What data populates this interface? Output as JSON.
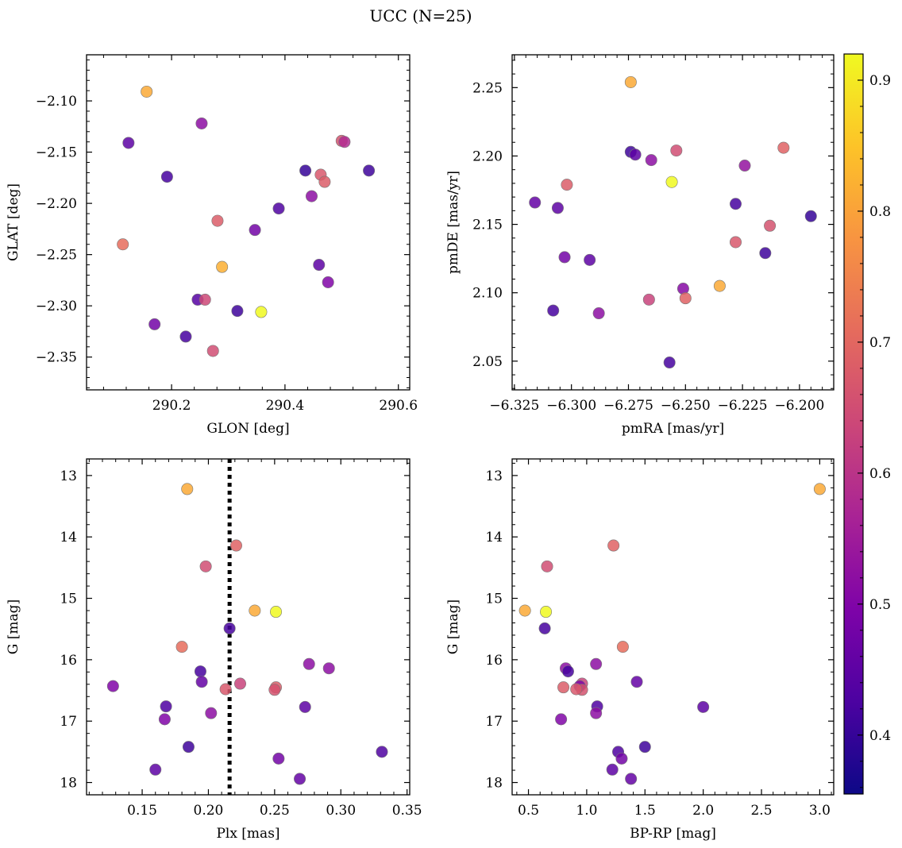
{
  "figure": {
    "title": "UCC (N=25)"
  },
  "colorbar": {
    "range": [
      0.355,
      0.92
    ],
    "ticks": [
      0.4,
      0.5,
      0.6,
      0.7,
      0.8,
      0.9
    ],
    "tick_labels": [
      "0.4",
      "0.5",
      "0.6",
      "0.7",
      "0.8",
      "0.9"
    ],
    "colormap": "plasma"
  },
  "chart_data": [
    {
      "type": "scatter",
      "xlabel": "GLON [deg]",
      "ylabel": "GLAT [deg]",
      "xlim": [
        290.05,
        290.62
      ],
      "ylim": [
        -2.382,
        -2.055
      ],
      "x_inverted": false,
      "y_inverted": false,
      "xticks": [
        290.2,
        290.4,
        290.6
      ],
      "xtick_labels": [
        "290.2",
        "290.4",
        "290.6"
      ],
      "yticks": [
        -2.35,
        -2.3,
        -2.25,
        -2.2,
        -2.15,
        -2.1
      ],
      "ytick_labels": [
        "−2.35",
        "−2.30",
        "−2.25",
        "−2.20",
        "−2.15",
        "−2.10"
      ],
      "points": [
        {
          "x": 290.156,
          "y": -2.091,
          "c": 0.81
        },
        {
          "x": 290.253,
          "y": -2.122,
          "c": 0.52
        },
        {
          "x": 290.124,
          "y": -2.141,
          "c": 0.45
        },
        {
          "x": 290.192,
          "y": -2.174,
          "c": 0.42
        },
        {
          "x": 290.5,
          "y": -2.139,
          "c": 0.66
        },
        {
          "x": 290.505,
          "y": -2.14,
          "c": 0.58
        },
        {
          "x": 290.436,
          "y": -2.168,
          "c": 0.4
        },
        {
          "x": 290.548,
          "y": -2.168,
          "c": 0.41
        },
        {
          "x": 290.463,
          "y": -2.172,
          "c": 0.67
        },
        {
          "x": 290.47,
          "y": -2.179,
          "c": 0.68
        },
        {
          "x": 290.447,
          "y": -2.193,
          "c": 0.52
        },
        {
          "x": 290.389,
          "y": -2.205,
          "c": 0.43
        },
        {
          "x": 290.281,
          "y": -2.217,
          "c": 0.68
        },
        {
          "x": 290.347,
          "y": -2.226,
          "c": 0.48
        },
        {
          "x": 290.114,
          "y": -2.24,
          "c": 0.71
        },
        {
          "x": 290.46,
          "y": -2.26,
          "c": 0.45
        },
        {
          "x": 290.289,
          "y": -2.262,
          "c": 0.82
        },
        {
          "x": 290.476,
          "y": -2.277,
          "c": 0.5
        },
        {
          "x": 290.246,
          "y": -2.294,
          "c": 0.44
        },
        {
          "x": 290.259,
          "y": -2.294,
          "c": 0.64
        },
        {
          "x": 290.316,
          "y": -2.305,
          "c": 0.41
        },
        {
          "x": 290.358,
          "y": -2.306,
          "c": 0.92
        },
        {
          "x": 290.17,
          "y": -2.318,
          "c": 0.48
        },
        {
          "x": 290.225,
          "y": -2.33,
          "c": 0.42
        },
        {
          "x": 290.273,
          "y": -2.344,
          "c": 0.65
        }
      ]
    },
    {
      "type": "scatter",
      "xlabel": "pmRA [mas/yr]",
      "ylabel": "pmDE [mas/yr]",
      "xlim": [
        -6.326,
        -6.185
      ],
      "ylim": [
        2.029,
        2.274
      ],
      "x_inverted": false,
      "y_inverted": false,
      "xticks": [
        -6.325,
        -6.3,
        -6.275,
        -6.25,
        -6.225,
        -6.2
      ],
      "xtick_labels": [
        "−6.325",
        "−6.300",
        "−6.275",
        "−6.250",
        "−6.225",
        "−6.200"
      ],
      "yticks": [
        2.05,
        2.1,
        2.15,
        2.2,
        2.25
      ],
      "ytick_labels": [
        "2.05",
        "2.10",
        "2.15",
        "2.20",
        "2.25"
      ],
      "points": [
        {
          "x": -6.274,
          "y": 2.254,
          "c": 0.81
        },
        {
          "x": -6.274,
          "y": 2.203,
          "c": 0.41
        },
        {
          "x": -6.272,
          "y": 2.201,
          "c": 0.45
        },
        {
          "x": -6.254,
          "y": 2.204,
          "c": 0.65
        },
        {
          "x": -6.265,
          "y": 2.197,
          "c": 0.52
        },
        {
          "x": -6.207,
          "y": 2.206,
          "c": 0.69
        },
        {
          "x": -6.224,
          "y": 2.193,
          "c": 0.53
        },
        {
          "x": -6.256,
          "y": 2.181,
          "c": 0.92
        },
        {
          "x": -6.302,
          "y": 2.179,
          "c": 0.68
        },
        {
          "x": -6.316,
          "y": 2.166,
          "c": 0.46
        },
        {
          "x": -6.306,
          "y": 2.162,
          "c": 0.45
        },
        {
          "x": -6.228,
          "y": 2.165,
          "c": 0.42
        },
        {
          "x": -6.195,
          "y": 2.156,
          "c": 0.4
        },
        {
          "x": -6.213,
          "y": 2.149,
          "c": 0.66
        },
        {
          "x": -6.228,
          "y": 2.137,
          "c": 0.67
        },
        {
          "x": -6.215,
          "y": 2.129,
          "c": 0.41
        },
        {
          "x": -6.303,
          "y": 2.126,
          "c": 0.48
        },
        {
          "x": -6.292,
          "y": 2.124,
          "c": 0.45
        },
        {
          "x": -6.235,
          "y": 2.105,
          "c": 0.81
        },
        {
          "x": -6.251,
          "y": 2.103,
          "c": 0.51
        },
        {
          "x": -6.266,
          "y": 2.095,
          "c": 0.63
        },
        {
          "x": -6.25,
          "y": 2.096,
          "c": 0.69
        },
        {
          "x": -6.308,
          "y": 2.087,
          "c": 0.42
        },
        {
          "x": -6.288,
          "y": 2.085,
          "c": 0.52
        },
        {
          "x": -6.257,
          "y": 2.049,
          "c": 0.42
        }
      ]
    },
    {
      "type": "scatter",
      "xlabel": "Plx [mas]",
      "ylabel": "G [mag]",
      "xlim": [
        0.108,
        0.352
      ],
      "ylim": [
        18.2,
        12.73
      ],
      "x_inverted": false,
      "y_inverted": true,
      "vline": {
        "x": 0.216,
        "style": "dotted",
        "color": "#000000"
      },
      "xticks": [
        0.15,
        0.2,
        0.25,
        0.3,
        0.35
      ],
      "xtick_labels": [
        "0.15",
        "0.20",
        "0.25",
        "0.30",
        "0.35"
      ],
      "yticks": [
        13,
        14,
        15,
        16,
        17,
        18
      ],
      "ytick_labels": [
        "13",
        "14",
        "15",
        "16",
        "17",
        "18"
      ],
      "points": [
        {
          "x": 0.184,
          "y": 13.22,
          "c": 0.81
        },
        {
          "x": 0.221,
          "y": 14.14,
          "c": 0.69
        },
        {
          "x": 0.198,
          "y": 14.48,
          "c": 0.65
        },
        {
          "x": 0.235,
          "y": 15.2,
          "c": 0.81
        },
        {
          "x": 0.251,
          "y": 15.22,
          "c": 0.92
        },
        {
          "x": 0.216,
          "y": 15.49,
          "c": 0.42
        },
        {
          "x": 0.18,
          "y": 15.79,
          "c": 0.71
        },
        {
          "x": 0.276,
          "y": 16.07,
          "c": 0.52
        },
        {
          "x": 0.291,
          "y": 16.14,
          "c": 0.52
        },
        {
          "x": 0.194,
          "y": 16.19,
          "c": 0.42
        },
        {
          "x": 0.195,
          "y": 16.36,
          "c": 0.46
        },
        {
          "x": 0.224,
          "y": 16.39,
          "c": 0.63
        },
        {
          "x": 0.128,
          "y": 16.43,
          "c": 0.5
        },
        {
          "x": 0.251,
          "y": 16.45,
          "c": 0.68
        },
        {
          "x": 0.25,
          "y": 16.49,
          "c": 0.66
        },
        {
          "x": 0.213,
          "y": 16.48,
          "c": 0.67
        },
        {
          "x": 0.168,
          "y": 16.76,
          "c": 0.43
        },
        {
          "x": 0.273,
          "y": 16.77,
          "c": 0.45
        },
        {
          "x": 0.202,
          "y": 16.87,
          "c": 0.52
        },
        {
          "x": 0.167,
          "y": 16.97,
          "c": 0.5
        },
        {
          "x": 0.185,
          "y": 17.42,
          "c": 0.41
        },
        {
          "x": 0.331,
          "y": 17.5,
          "c": 0.43
        },
        {
          "x": 0.253,
          "y": 17.61,
          "c": 0.48
        },
        {
          "x": 0.16,
          "y": 17.79,
          "c": 0.45
        },
        {
          "x": 0.269,
          "y": 17.94,
          "c": 0.46
        }
      ]
    },
    {
      "type": "scatter",
      "xlabel": "BP-RP [mag]",
      "ylabel": "G [mag]",
      "xlim": [
        0.36,
        3.12
      ],
      "ylim": [
        18.2,
        12.73
      ],
      "x_inverted": false,
      "y_inverted": true,
      "xticks": [
        0.5,
        1.0,
        1.5,
        2.0,
        2.5,
        3.0
      ],
      "xtick_labels": [
        "0.5",
        "1.0",
        "1.5",
        "2.0",
        "2.5",
        "3.0"
      ],
      "yticks": [
        13,
        14,
        15,
        16,
        17,
        18
      ],
      "ytick_labels": [
        "13",
        "14",
        "15",
        "16",
        "17",
        "18"
      ],
      "points": [
        {
          "x": 3.0,
          "y": 13.22,
          "c": 0.81
        },
        {
          "x": 1.23,
          "y": 14.14,
          "c": 0.69
        },
        {
          "x": 0.66,
          "y": 14.48,
          "c": 0.65
        },
        {
          "x": 0.47,
          "y": 15.2,
          "c": 0.81
        },
        {
          "x": 0.65,
          "y": 15.22,
          "c": 0.92
        },
        {
          "x": 0.64,
          "y": 15.49,
          "c": 0.42
        },
        {
          "x": 1.31,
          "y": 15.79,
          "c": 0.71
        },
        {
          "x": 1.08,
          "y": 16.07,
          "c": 0.52
        },
        {
          "x": 0.82,
          "y": 16.14,
          "c": 0.52
        },
        {
          "x": 0.84,
          "y": 16.19,
          "c": 0.42
        },
        {
          "x": 1.43,
          "y": 16.36,
          "c": 0.46
        },
        {
          "x": 0.96,
          "y": 16.39,
          "c": 0.63
        },
        {
          "x": 0.94,
          "y": 16.43,
          "c": 0.5
        },
        {
          "x": 0.8,
          "y": 16.45,
          "c": 0.68
        },
        {
          "x": 0.96,
          "y": 16.49,
          "c": 0.66
        },
        {
          "x": 0.91,
          "y": 16.48,
          "c": 0.67
        },
        {
          "x": 1.09,
          "y": 16.76,
          "c": 0.43
        },
        {
          "x": 2.0,
          "y": 16.77,
          "c": 0.45
        },
        {
          "x": 1.08,
          "y": 16.87,
          "c": 0.52
        },
        {
          "x": 0.78,
          "y": 16.97,
          "c": 0.5
        },
        {
          "x": 1.5,
          "y": 17.42,
          "c": 0.41
        },
        {
          "x": 1.27,
          "y": 17.5,
          "c": 0.43
        },
        {
          "x": 1.3,
          "y": 17.61,
          "c": 0.48
        },
        {
          "x": 1.22,
          "y": 17.79,
          "c": 0.45
        },
        {
          "x": 1.38,
          "y": 17.94,
          "c": 0.46
        }
      ]
    }
  ]
}
